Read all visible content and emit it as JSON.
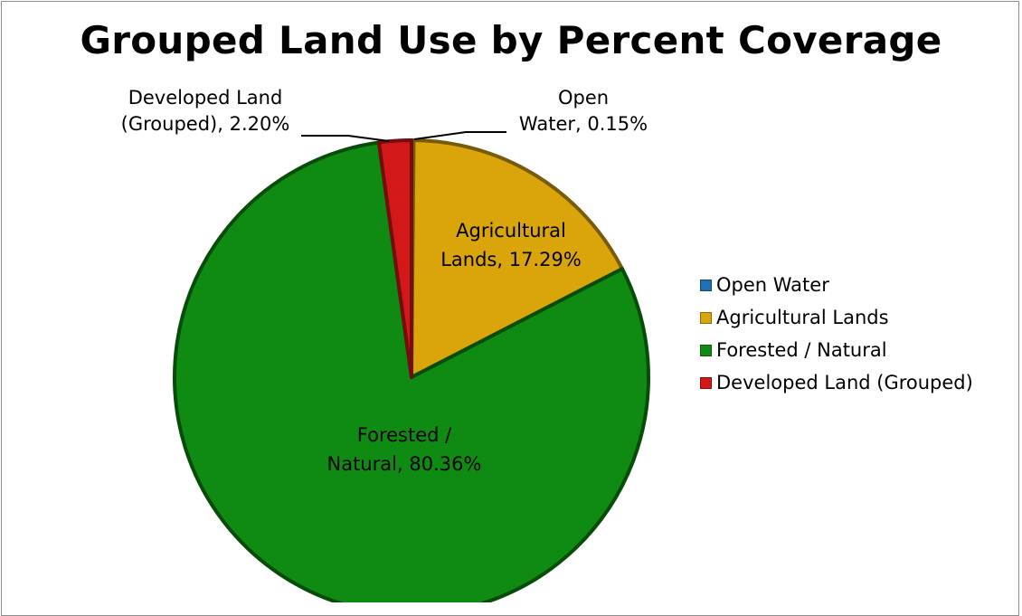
{
  "chart_data": {
    "type": "pie",
    "title": "Grouped Land Use by Percent Coverage",
    "slices": [
      {
        "name": "Open Water",
        "value": 0.15,
        "color": "#1f6fb4",
        "label_lines": [
          "Open",
          "Water, 0.15%"
        ]
      },
      {
        "name": "Agricultural Lands",
        "value": 17.29,
        "color": "#d9a50b",
        "label_lines": [
          "Agricultural",
          "Lands, 17.29%"
        ]
      },
      {
        "name": "Forested / Natural",
        "value": 80.36,
        "color": "#0f8a12",
        "label_lines": [
          "Forested /",
          "Natural, 80.36%"
        ]
      },
      {
        "name": "Developed Land (Grouped)",
        "value": 2.2,
        "color": "#d21818",
        "label_lines": [
          "Developed Land",
          "(Grouped), 2.20%"
        ]
      }
    ],
    "legend": {
      "position": "right",
      "entries": [
        "Open Water",
        "Agricultural Lands",
        "Forested / Natural",
        "Developed Land (Grouped)"
      ]
    }
  }
}
